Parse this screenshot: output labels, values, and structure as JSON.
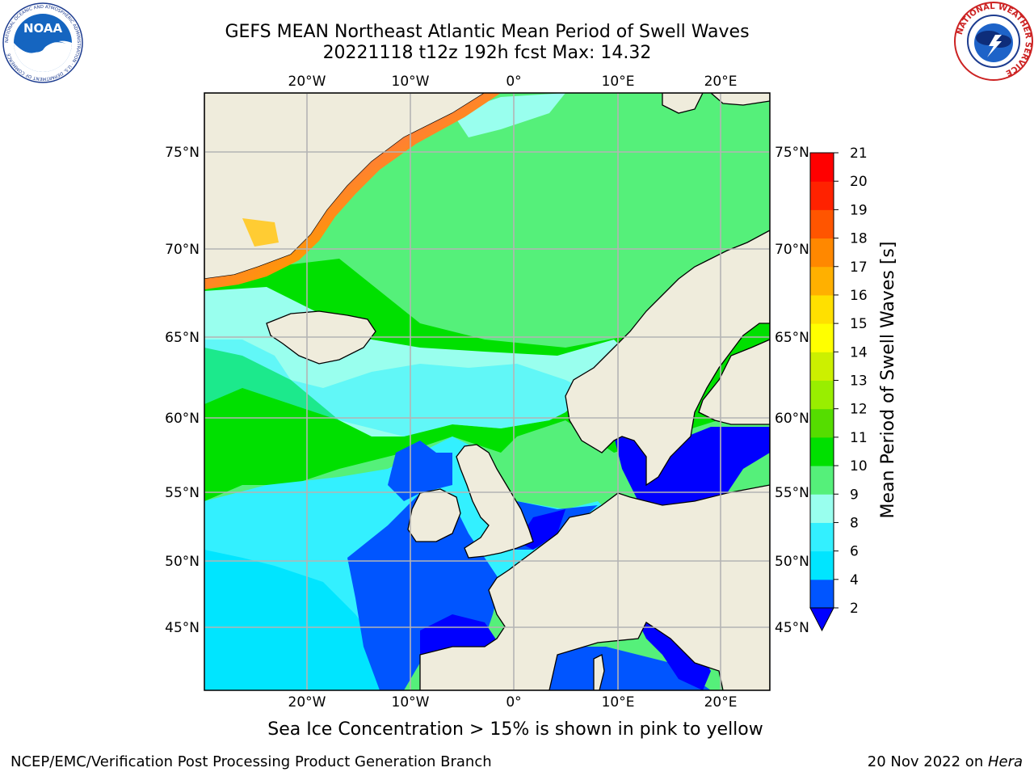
{
  "title": {
    "line1": "GEFS MEAN Northeast Atlantic Mean Period of Swell Waves",
    "line2": "20221118 t12z 192h fcst   Max: 14.32"
  },
  "logos": {
    "left": {
      "name": "NOAA",
      "text": "NOAA",
      "icon": "noaa-logo",
      "ring_text": "NATIONAL OCEANIC AND ATMOSPHERIC ADMINISTRATION · U.S. DEPARTMENT OF COMMERCE"
    },
    "right": {
      "name": "National Weather Service",
      "icon": "nws-logo",
      "ring_text": "NATIONAL WEATHER SERVICE"
    }
  },
  "map": {
    "lon_range": [
      -30,
      25
    ],
    "lat_range": [
      41,
      78
    ],
    "top_lon_labels": [
      "20°W",
      "10°W",
      "0°",
      "10°E",
      "20°E"
    ],
    "bottom_lon_labels": [
      "20°W",
      "10°W",
      "0°",
      "10°E",
      "20°E"
    ],
    "left_lat_labels": [
      "75°N",
      "70°N",
      "65°N",
      "60°N",
      "55°N",
      "50°N",
      "45°N"
    ],
    "right_lat_labels": [
      "75°N",
      "70°N",
      "65°N",
      "60°N",
      "55°N",
      "50°N",
      "45°N"
    ],
    "gridlines": true,
    "colors": {
      "land": "#efecdc",
      "ice_edge": "#ff33cc",
      "ice_inner": "#ffff33"
    }
  },
  "colorbar": {
    "label": "Mean Period of Swell Waves [s]",
    "ticks": [
      "2",
      "4",
      "6",
      "8",
      "9",
      "10",
      "11",
      "12",
      "13",
      "14",
      "15",
      "16",
      "17",
      "18",
      "19",
      "20",
      "21"
    ],
    "colors": [
      "#0055ff",
      "#00e5ff",
      "#33f0ff",
      "#99ffee",
      "#55f07a",
      "#00e000",
      "#55dd00",
      "#99ee00",
      "#ccf000",
      "#ffff00",
      "#ffe000",
      "#ffb000",
      "#ff8800",
      "#ff5500",
      "#ff2200",
      "#ff0000"
    ],
    "under_color": "#0000ff"
  },
  "subnote": "Sea Ice Concentration > 15% is shown in pink to yellow",
  "footer": {
    "left": "NCEP/EMC/Verification Post Processing Product Generation Branch",
    "right_date": "20 Nov 2022 on ",
    "right_host": "Hera"
  }
}
